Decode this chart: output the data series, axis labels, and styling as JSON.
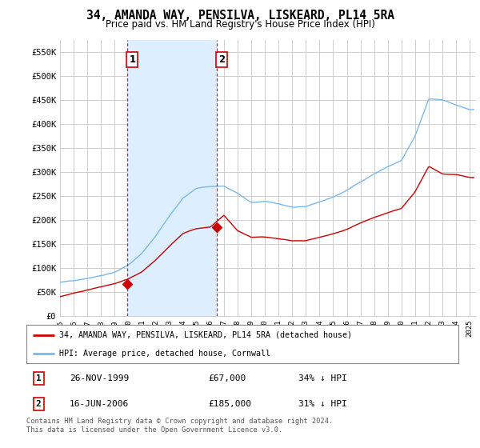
{
  "title": "34, AMANDA WAY, PENSILVA, LISKEARD, PL14 5RA",
  "subtitle": "Price paid vs. HM Land Registry's House Price Index (HPI)",
  "legend_line1": "34, AMANDA WAY, PENSILVA, LISKEARD, PL14 5RA (detached house)",
  "legend_line2": "HPI: Average price, detached house, Cornwall",
  "footer1": "Contains HM Land Registry data © Crown copyright and database right 2024.",
  "footer2": "This data is licensed under the Open Government Licence v3.0.",
  "table_rows": [
    {
      "num": "1",
      "date": "26-NOV-1999",
      "price": "£67,000",
      "pct": "34% ↓ HPI"
    },
    {
      "num": "2",
      "date": "16-JUN-2006",
      "price": "£185,000",
      "pct": "31% ↓ HPI"
    }
  ],
  "purchase1_year": 1999.9,
  "purchase1_price": 67000,
  "purchase2_year": 2006.46,
  "purchase2_price": 185000,
  "hpi_color": "#7ab8e8",
  "hpi_fill_color": "#ddeeff",
  "price_color": "#cc0000",
  "vline_color": "#cc0000",
  "grid_color": "#cccccc",
  "bg_color": "#ffffff",
  "ylim": [
    0,
    575000
  ],
  "yticks": [
    0,
    50000,
    100000,
    150000,
    200000,
    250000,
    300000,
    350000,
    400000,
    450000,
    500000,
    550000
  ],
  "ytick_labels": [
    "£0",
    "£50K",
    "£100K",
    "£150K",
    "£200K",
    "£250K",
    "£300K",
    "£350K",
    "£400K",
    "£450K",
    "£500K",
    "£550K"
  ],
  "hpi_anchor_years": [
    1995,
    1996,
    1997,
    1998,
    1999,
    2000,
    2001,
    2002,
    2003,
    2004,
    2005,
    2006,
    2007,
    2008,
    2009,
    2010,
    2011,
    2012,
    2013,
    2014,
    2015,
    2016,
    2017,
    2018,
    2019,
    2020,
    2021,
    2022,
    2023,
    2024,
    2025
  ],
  "hpi_anchor_values": [
    70000,
    73000,
    79000,
    85000,
    93000,
    108000,
    132000,
    168000,
    210000,
    248000,
    268000,
    272000,
    273000,
    258000,
    238000,
    240000,
    235000,
    228000,
    228000,
    238000,
    248000,
    262000,
    280000,
    297000,
    312000,
    325000,
    375000,
    452000,
    450000,
    440000,
    430000
  ],
  "price_anchor_years": [
    1995,
    1999,
    2000,
    2001,
    2002,
    2003,
    2004,
    2005,
    2006,
    2007,
    2008,
    2009,
    2010,
    2011,
    2012,
    2013,
    2014,
    2015,
    2016,
    2017,
    2018,
    2019,
    2020,
    2021,
    2022,
    2023,
    2024,
    2025
  ],
  "price_anchor_values": [
    40000,
    67000,
    76000,
    91000,
    116000,
    145000,
    172000,
    182000,
    185000,
    210000,
    178000,
    165000,
    166000,
    162000,
    158000,
    158000,
    165000,
    172000,
    181000,
    194000,
    206000,
    216000,
    225000,
    260000,
    313000,
    297000,
    296000,
    290000
  ]
}
